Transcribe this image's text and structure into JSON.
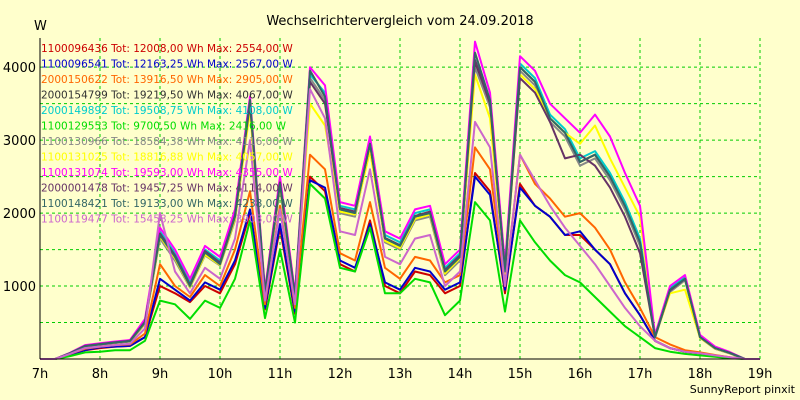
{
  "chart_data": {
    "type": "line",
    "title": "Wechselrichtervergleich vom 24.09.2018",
    "ylabel": "W",
    "footer": "SunnyReport pinxit",
    "x_ticks": [
      "7h",
      "8h",
      "9h",
      "10h",
      "11h",
      "12h",
      "13h",
      "14h",
      "15h",
      "16h",
      "17h",
      "18h",
      "19h"
    ],
    "y_ticks": [
      "1000",
      "2000",
      "3000",
      "4000"
    ],
    "xlim_hours": [
      7,
      19
    ],
    "ylim": [
      0,
      4400
    ],
    "grid": true,
    "grid_color": "#00cc00",
    "background": "#ffffcc",
    "legend_position": "top-left",
    "x_hours": [
      7.0,
      7.25,
      7.5,
      7.75,
      8.0,
      8.25,
      8.5,
      8.75,
      9.0,
      9.25,
      9.5,
      9.75,
      10.0,
      10.25,
      10.5,
      10.75,
      11.0,
      11.25,
      11.5,
      11.75,
      12.0,
      12.25,
      12.5,
      12.75,
      13.0,
      13.25,
      13.5,
      13.75,
      14.0,
      14.25,
      14.5,
      14.75,
      15.0,
      15.25,
      15.5,
      15.75,
      16.0,
      16.25,
      16.5,
      16.75,
      17.0,
      17.25,
      17.5,
      17.75,
      18.0,
      18.25,
      18.5,
      18.75,
      19.0
    ],
    "series": [
      {
        "name": "1100096436 Tot: 12008,00 Wh Max: 2554,00 W",
        "color": "#cc0000",
        "values": [
          0,
          0,
          60,
          120,
          150,
          170,
          180,
          300,
          1000,
          900,
          780,
          1000,
          900,
          1300,
          2000,
          680,
          1800,
          620,
          2500,
          2300,
          1300,
          1200,
          1900,
          1000,
          900,
          1200,
          1150,
          900,
          1000,
          2550,
          2300,
          900,
          2400,
          2100,
          1950,
          1700,
          1700,
          1500,
          1300,
          900,
          600,
          250,
          150,
          100,
          80,
          50,
          20,
          0,
          0
        ]
      },
      {
        "name": "1100096541 Tot: 12163,25 Wh Max: 2567,00 W",
        "color": "#0000cc",
        "values": [
          0,
          0,
          60,
          120,
          160,
          170,
          180,
          300,
          1100,
          950,
          800,
          1050,
          950,
          1350,
          2050,
          700,
          1850,
          650,
          2450,
          2350,
          1350,
          1250,
          1850,
          1050,
          950,
          1250,
          1200,
          950,
          1050,
          2500,
          2250,
          950,
          2350,
          2100,
          1950,
          1700,
          1750,
          1500,
          1300,
          900,
          600,
          250,
          150,
          100,
          80,
          50,
          20,
          0,
          0
        ]
      },
      {
        "name": "2000150622 Tot: 13916,50 Wh Max: 2905,00 W",
        "color": "#ff6600",
        "values": [
          0,
          0,
          70,
          140,
          170,
          190,
          200,
          350,
          1300,
          1000,
          850,
          1150,
          1000,
          1500,
          2300,
          750,
          2100,
          700,
          2800,
          2600,
          1450,
          1350,
          2150,
          1250,
          1100,
          1400,
          1350,
          1050,
          1150,
          2900,
          2600,
          1000,
          2800,
          2400,
          2200,
          1950,
          2000,
          1800,
          1500,
          1050,
          700,
          300,
          200,
          120,
          90,
          55,
          25,
          0,
          0
        ]
      },
      {
        "name": "2000154799 Tot: 19219,50 Wh Max: 4067,00 W",
        "color": "#333333",
        "values": [
          0,
          0,
          80,
          180,
          200,
          220,
          240,
          500,
          1700,
          1400,
          1000,
          1450,
          1300,
          1950,
          3500,
          900,
          2400,
          850,
          3950,
          3600,
          2050,
          2000,
          2950,
          1650,
          1550,
          1950,
          2000,
          1200,
          1400,
          4050,
          3500,
          1200,
          4000,
          3800,
          3300,
          3100,
          2700,
          2800,
          2500,
          2100,
          1600,
          300,
          950,
          1100,
          300,
          150,
          80,
          0,
          0
        ]
      },
      {
        "name": "2000149892 Tot: 19508,75 Wh Max: 4108,00 W",
        "color": "#00cccc",
        "values": [
          0,
          0,
          80,
          180,
          210,
          230,
          250,
          520,
          1750,
          1450,
          1050,
          1500,
          1350,
          2000,
          3550,
          920,
          2450,
          870,
          3900,
          3650,
          2100,
          2050,
          3000,
          1700,
          1600,
          2000,
          2050,
          1250,
          1450,
          4100,
          3550,
          1250,
          4050,
          3850,
          3350,
          3150,
          2750,
          2850,
          2550,
          2150,
          1650,
          320,
          980,
          1120,
          320,
          160,
          90,
          0,
          0
        ]
      },
      {
        "name": "1100129553 Tot: 9700,50 Wh Max: 2416,00 W",
        "color": "#00dd00",
        "values": [
          0,
          0,
          40,
          90,
          100,
          120,
          120,
          250,
          800,
          750,
          550,
          800,
          700,
          1100,
          1900,
          560,
          1500,
          500,
          2400,
          2200,
          1250,
          1200,
          1800,
          900,
          900,
          1100,
          1050,
          600,
          800,
          2150,
          1900,
          650,
          1900,
          1600,
          1350,
          1150,
          1050,
          850,
          650,
          450,
          300,
          150,
          100,
          70,
          50,
          30,
          10,
          0,
          0
        ]
      },
      {
        "name": "1100130966 Tot: 18584,38 Wh Max: 4116,00 W",
        "color": "#888888",
        "values": [
          0,
          0,
          80,
          170,
          200,
          220,
          240,
          480,
          1650,
          1350,
          980,
          1420,
          1280,
          1900,
          3450,
          880,
          2350,
          830,
          3850,
          3550,
          2000,
          1950,
          2900,
          1600,
          1500,
          1900,
          1950,
          1150,
          1350,
          4000,
          3450,
          1150,
          3950,
          3750,
          3250,
          3050,
          2650,
          2750,
          2450,
          2050,
          1550,
          290,
          920,
          1080,
          290,
          140,
          75,
          0,
          0
        ]
      },
      {
        "name": "1100131025 Tot: 18816,88 Wh Max: 4057,00 W",
        "color": "#ffff00",
        "values": [
          0,
          0,
          80,
          175,
          205,
          225,
          245,
          490,
          1680,
          1380,
          990,
          1430,
          1290,
          1920,
          3400,
          890,
          2380,
          840,
          3500,
          3200,
          2020,
          1980,
          2850,
          1620,
          1520,
          1920,
          1980,
          1170,
          1380,
          3900,
          3300,
          1170,
          3900,
          3700,
          3300,
          3100,
          2950,
          3200,
          2750,
          2350,
          1950,
          310,
          900,
          950,
          290,
          145,
          78,
          0,
          0
        ]
      },
      {
        "name": "1100131074 Tot: 19593,00 Wh Max: 4355,00 W",
        "color": "#ff00ff",
        "values": [
          0,
          0,
          85,
          190,
          215,
          240,
          260,
          550,
          1800,
          1500,
          1100,
          1550,
          1400,
          2050,
          3600,
          950,
          2500,
          900,
          4000,
          3750,
          2150,
          2100,
          3050,
          1750,
          1650,
          2050,
          2100,
          1300,
          1500,
          4350,
          3650,
          1300,
          4150,
          3950,
          3500,
          3300,
          3100,
          3350,
          3050,
          2550,
          2100,
          330,
          1000,
          1150,
          330,
          170,
          95,
          0,
          0
        ]
      },
      {
        "name": "2000001478 Tot: 19457,25 Wh Max: 4114,00 W",
        "color": "#663366",
        "values": [
          0,
          0,
          80,
          180,
          205,
          230,
          250,
          510,
          1720,
          1420,
          1020,
          1480,
          1320,
          1970,
          3500,
          910,
          2420,
          860,
          3800,
          3500,
          2070,
          2020,
          2950,
          1660,
          1560,
          1960,
          2020,
          1220,
          1420,
          4100,
          3500,
          1220,
          3850,
          3650,
          3250,
          2750,
          2800,
          2650,
          2350,
          1950,
          1450,
          300,
          940,
          1100,
          300,
          150,
          85,
          0,
          0
        ]
      },
      {
        "name": "1100148421 Tot: 19133,00 Wh Max: 4238,00 W",
        "color": "#336666",
        "values": [
          0,
          0,
          80,
          175,
          200,
          225,
          245,
          500,
          1700,
          1400,
          1000,
          1460,
          1300,
          1950,
          3550,
          900,
          2400,
          850,
          3950,
          3600,
          2050,
          2000,
          2950,
          1650,
          1550,
          1950,
          2000,
          1200,
          1400,
          4200,
          3550,
          1200,
          4000,
          3800,
          3300,
          3100,
          2700,
          2800,
          2500,
          2100,
          1600,
          300,
          950,
          1100,
          300,
          150,
          80,
          0,
          0
        ]
      },
      {
        "name": "1100119477 Tot: 15458,25 Wh Max: 3908,00 W",
        "color": "#cc66cc",
        "values": [
          0,
          0,
          70,
          150,
          170,
          190,
          210,
          420,
          2000,
          1200,
          900,
          1250,
          1100,
          1650,
          3000,
          800,
          2050,
          750,
          3700,
          3300,
          1750,
          1700,
          2600,
          1400,
          1300,
          1650,
          1700,
          1000,
          1200,
          3250,
          2900,
          1000,
          2800,
          2450,
          2100,
          1800,
          1550,
          1300,
          1000,
          700,
          450,
          250,
          150,
          100,
          80,
          50,
          25,
          0,
          0
        ]
      }
    ]
  }
}
